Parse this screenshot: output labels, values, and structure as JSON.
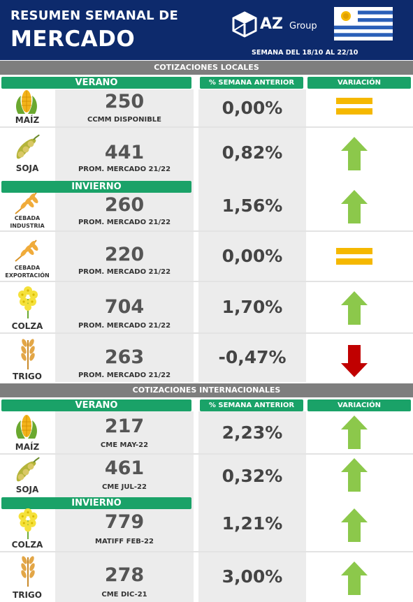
{
  "header": {
    "title_line1": "RESUMEN SEMANAL DE",
    "title_line2": "MERCADO",
    "brand_az": "AZ",
    "brand_group": "Group",
    "week": "SEMANA DEL 18/10 AL 22/10"
  },
  "colors": {
    "header_bg": "#0d2a6c",
    "band_bg": "#7e7e7e",
    "pill_green": "#1aa268",
    "arrow_up": "#8cc84b",
    "arrow_down": "#c00000",
    "equal": "#f5b800"
  },
  "local": {
    "band": "COTIZACIONES LOCALES",
    "summer": "VERANO",
    "winter": "INVIERNO",
    "pct_header": "% SEMANA ANTERIOR",
    "var_header": "VARIACIÓN",
    "rows": [
      {
        "crop": "MAÍZ",
        "icon": "corn-icon",
        "price": "250",
        "sub": "CCMM DISPONIBLE",
        "pct": "0,00%",
        "variation": "equal"
      },
      {
        "crop": "SOJA",
        "icon": "soy-icon",
        "price": "441",
        "sub": "PROM. MERCADO 21/22",
        "pct": "0,82%",
        "variation": "up"
      },
      {
        "crop_line1": "CEBADA",
        "crop_line2": "INDUSTRIA",
        "icon": "barley-icon",
        "price": "260",
        "sub": "PROM. MERCADO 21/22",
        "pct": "1,56%",
        "variation": "up"
      },
      {
        "crop_line1": "CEBADA",
        "crop_line2": "EXPORTACIÓN",
        "icon": "barley-icon",
        "price": "220",
        "sub": "PROM. MERCADO 21/22",
        "pct": "0,00%",
        "variation": "equal"
      },
      {
        "crop": "COLZA",
        "icon": "rapeseed-icon",
        "price": "704",
        "sub": "PROM. MERCADO 21/22",
        "pct": "1,70%",
        "variation": "up"
      },
      {
        "crop": "TRIGO",
        "icon": "wheat-icon",
        "price": "263",
        "sub": "PROM. MERCADO 21/22",
        "pct": "-0,47%",
        "variation": "down"
      }
    ]
  },
  "intl": {
    "band": "COTIZACIONES INTERNACIONALES",
    "summer": "VERANO",
    "winter": "INVIERNO",
    "pct_header": "% SEMANA ANTERIOR",
    "var_header": "VARIACIÓN",
    "rows": [
      {
        "crop": "MAÍZ",
        "icon": "corn-icon",
        "price": "217",
        "sub": "CME MAY-22",
        "pct": "2,23%",
        "variation": "up"
      },
      {
        "crop": "SOJA",
        "icon": "soy-icon",
        "price": "461",
        "sub": "CME JUL-22",
        "pct": "0,32%",
        "variation": "up"
      },
      {
        "crop": "COLZA",
        "icon": "rapeseed-icon",
        "price": "779",
        "sub": "MATIFF FEB-22",
        "pct": "1,21%",
        "variation": "up"
      },
      {
        "crop": "TRIGO",
        "icon": "wheat-icon",
        "price": "278",
        "sub": "CME DIC-21",
        "pct": "3,00%",
        "variation": "up"
      }
    ]
  }
}
